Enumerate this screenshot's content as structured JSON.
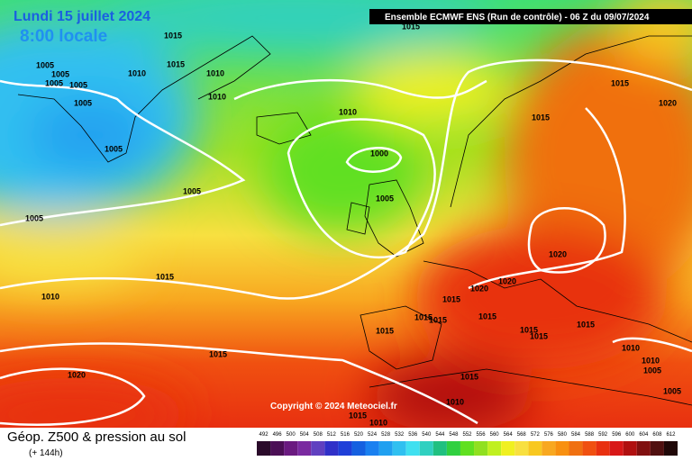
{
  "date": "Lundi 15 juillet 2024",
  "time": "8:00 locale",
  "header": "Ensemble ECMWF ENS  (Run de contrôle)  - 06 Z du 09/07/2024",
  "copyright": "Copyright © 2024 Meteociel.fr",
  "footer": {
    "title": "Géop. Z500 & pression au sol",
    "lead": "(+ 144h)"
  },
  "legend": {
    "values": [
      492,
      496,
      500,
      504,
      508,
      512,
      516,
      520,
      524,
      528,
      532,
      536,
      540,
      544,
      548,
      552,
      556,
      560,
      564,
      568,
      572,
      576,
      580,
      584,
      588,
      592,
      596,
      600,
      604,
      608,
      612
    ],
    "colors": [
      "#2a0a2a",
      "#4b0f55",
      "#6a1a80",
      "#7a2aa0",
      "#6040c0",
      "#3030c8",
      "#1f3fd8",
      "#1560e0",
      "#1a80f0",
      "#20a0f0",
      "#30c0f0",
      "#40e0f0",
      "#30d0c0",
      "#20c080",
      "#30d040",
      "#60e020",
      "#90e020",
      "#c0f020",
      "#f0f020",
      "#f8e040",
      "#f8c820",
      "#f8a820",
      "#f89010",
      "#f07010",
      "#f05010",
      "#e83010",
      "#d81818",
      "#b01010",
      "#801010",
      "#501010",
      "#200808"
    ]
  },
  "isobar_labels": [
    "1015",
    "1015",
    "1005",
    "1005",
    "1005",
    "1005",
    "1005",
    "1010",
    "1010",
    "1010",
    "1010",
    "1005",
    "1000",
    "1005",
    "1005",
    "1005",
    "1015",
    "1010",
    "1020",
    "1015",
    "1020",
    "1020",
    "1015",
    "1015",
    "1015",
    "1015",
    "1015",
    "1015",
    "1015",
    "1015",
    "1010",
    "1010",
    "1005",
    "1020",
    "1015",
    "1010",
    "1005",
    "1015",
    "1010",
    "1015",
    "1015",
    "1020",
    "1015"
  ]
}
